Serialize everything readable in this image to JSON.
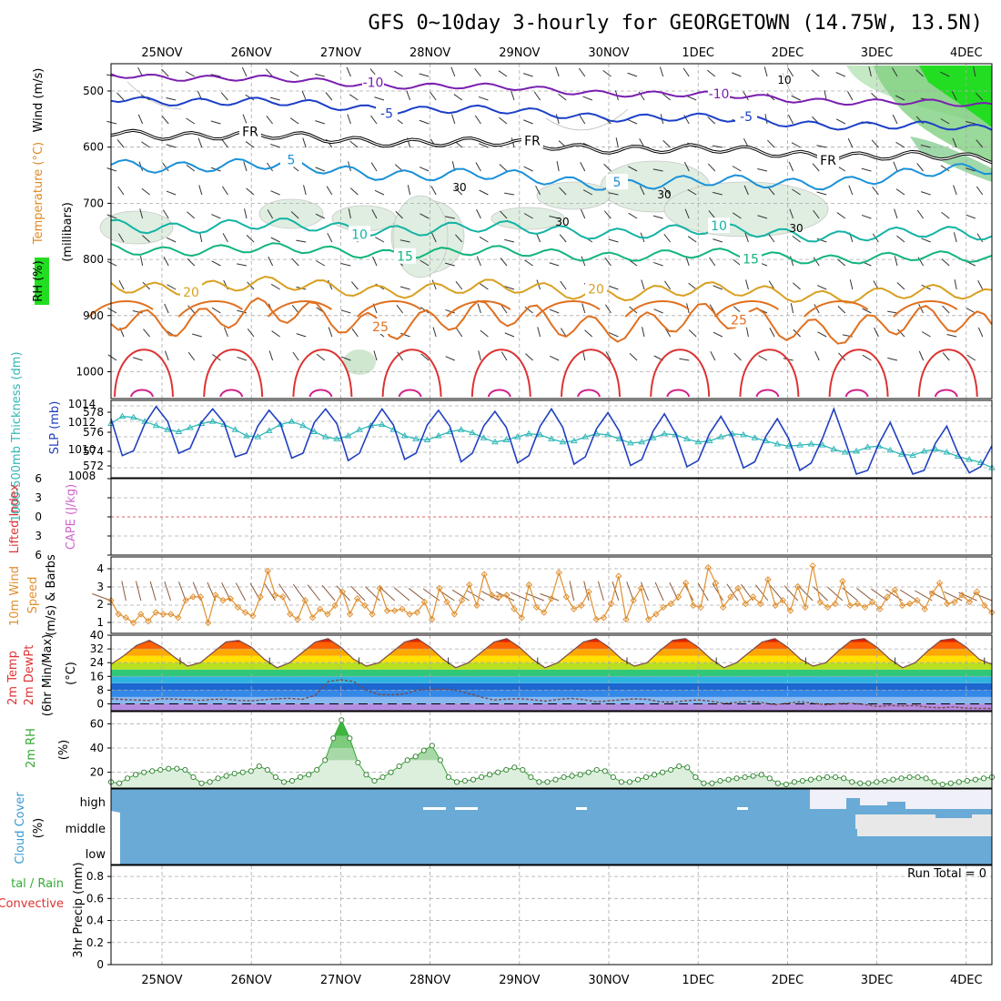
{
  "title": "GFS 0~10day 3-hourly for GEORGETOWN (14.75W, 13.5N)",
  "dates": [
    "25NOV",
    "26NOV",
    "27NOV",
    "28NOV",
    "29NOV",
    "30NOV",
    "1DEC",
    "2DEC",
    "3DEC",
    "4DEC"
  ],
  "run_total": "Run Total = 0",
  "colors": {
    "axis": "#000000",
    "grid": "#aaaaaa",
    "rh_green": "#22dd22",
    "temp_orange": "#e08a20",
    "temp_red": "#dd3333",
    "slp": "#2040c0",
    "thick": "#30b8b8",
    "wind": "#e09030",
    "barb": "#8b5a3c",
    "rh2m": "#33aa33",
    "cloud": "#6aaad6"
  },
  "panels": {
    "upper": {
      "labels": {
        "wind": "Wind (m/s)",
        "temp": "Temperature (°C)",
        "pressure": "(millibars)",
        "rh": "RH (%)"
      },
      "yticks": [
        "500",
        "600",
        "700",
        "800",
        "900",
        "1000"
      ],
      "contours": [
        {
          "label": "-10",
          "color": "#7a1fb0",
          "level": -10
        },
        {
          "label": "-5",
          "color": "#1c3fc8",
          "level": -5
        },
        {
          "label": "FR",
          "color": "#000000",
          "level": 0
        },
        {
          "label": "5",
          "color": "#1a90d8",
          "level": 5
        },
        {
          "label": "10",
          "color": "#13b3a4",
          "level": 10
        },
        {
          "label": "15",
          "color": "#12b57a",
          "level": 15
        },
        {
          "label": "20",
          "color": "#d8a020",
          "level": 20
        },
        {
          "label": "25",
          "color": "#e07020",
          "level": 25
        }
      ],
      "rh_labels": [
        "10",
        "30",
        "30",
        "30",
        "30"
      ]
    },
    "slp": {
      "labels": {
        "thick": "1000-500mb Thickness (dm)",
        "slp": "SLP (mb)"
      },
      "yticks_left": [
        "578",
        "576",
        "574",
        "572"
      ],
      "yticks_right": [
        "1014",
        "1012",
        "1010",
        "1008"
      ]
    },
    "cape": {
      "labels": {
        "li": "Lifted Index",
        "cape": "CAPE (J/kg)"
      },
      "yticks": [
        "6",
        "3",
        "0",
        "3",
        "6"
      ]
    },
    "wind10": {
      "labels": {
        "main": "10m Wind",
        "speed": "Speed",
        "barbs": "(m/s) & Barbs"
      },
      "yticks": [
        "4",
        "3",
        "2",
        "1"
      ]
    },
    "temp2m": {
      "labels": {
        "temp": "2m Temp",
        "dew": "2m DewPt",
        "minmax": "(6hr Min/Max)",
        "unit": "(°C)"
      },
      "yticks": [
        "40",
        "32",
        "24",
        "16",
        "8",
        "0"
      ]
    },
    "rh2m": {
      "labels": {
        "main": "2m RH",
        "unit": "(%)"
      },
      "yticks": [
        "60",
        "40",
        "20"
      ]
    },
    "cloud": {
      "labels": {
        "main": "Cloud Cover",
        "unit": "(%)",
        "high": "high",
        "middle": "middle",
        "low": "low"
      }
    },
    "precip": {
      "labels": {
        "total": "tal / Rain",
        "conv": "Convective",
        "main": "3hr Precip (mm)"
      },
      "yticks": [
        "0.8",
        "0.6",
        "0.4",
        "0.2",
        "0"
      ]
    }
  },
  "chart_data": [
    {
      "type": "line",
      "name": "upper-air cross section",
      "ylabel": "(millibars)",
      "ylim": [
        1000,
        450
      ],
      "contour_levels": [
        -10,
        -5,
        0,
        5,
        10,
        15,
        20,
        25
      ],
      "contour_pressure_mb": [
        470,
        512,
        573,
        630,
        738,
        780,
        845,
        900
      ]
    },
    {
      "type": "line",
      "name": "sea level pressure and thickness",
      "ylabel_left": "1000-500mb Thickness (dm)",
      "ylabel_right": "SLP (mb)",
      "ylim_left": [
        571,
        579
      ],
      "ylim_right": [
        1008,
        1014
      ],
      "series": [
        {
          "name": "SLP (mb)",
          "values": [
            1012.8,
            1009.8,
            1010.2,
            1012.4,
            1013.8,
            1012.6,
            1010,
            1010.4,
            1012.5,
            1013.6,
            1012.5,
            1009.7,
            1010,
            1012.2,
            1013.5,
            1012.4,
            1009.6,
            1010,
            1012.5,
            1013.6,
            1012.4,
            1009.4,
            1010,
            1012.2,
            1013.6,
            1012.3,
            1009.5,
            1010,
            1012.3,
            1013.5,
            1012.2,
            1009.3,
            1010,
            1012.2,
            1013.4,
            1012.1,
            1009.2,
            1009.8,
            1012.2,
            1013.6,
            1012.1,
            1009.1,
            1009.7,
            1012,
            1013.3,
            1011.8,
            1009,
            1009.5,
            1011.8,
            1013.2,
            1011.6,
            1008.9,
            1009.4,
            1011.6,
            1013,
            1011.4,
            1008.8,
            1009.3,
            1011.4,
            1012.8,
            1011.2,
            1008.6,
            1009.2,
            1011.2,
            1013.6,
            1011,
            1008.3,
            1008.6,
            1010.8,
            1012.5,
            1010.4,
            1008.3,
            1008.6,
            1010.8,
            1012.2,
            1010,
            1008.4,
            1008.9,
            1010.6
          ]
        },
        {
          "name": "1000-500mb Thickness (dm)",
          "values": [
            576.6,
            577.3,
            577.2,
            576.8,
            576.4,
            576,
            575.8,
            576.2,
            576.6,
            576.8,
            576.5,
            576,
            575.4,
            575.3,
            575.9,
            576.5,
            576.8,
            576.4,
            575.8,
            575.3,
            575.1,
            575.4,
            576,
            576.4,
            576.5,
            576,
            575.4,
            575.1,
            575,
            575.4,
            575.8,
            576,
            575.7,
            575.2,
            574.8,
            575,
            575.3,
            575.6,
            575.5,
            575.1,
            574.8,
            574.9,
            575.3,
            575.6,
            575.5,
            575.1,
            574.7,
            574.8,
            575.2,
            575.6,
            575.5,
            575.1,
            574.8,
            574.9,
            575.3,
            575.6,
            575.5,
            575.2,
            574.9,
            574.6,
            574.4,
            574.5,
            574.6,
            574.5,
            574.1,
            573.8,
            573.9,
            574.3,
            574.4,
            574,
            573.6,
            573.5,
            573.9,
            574.1,
            573.8,
            573.4,
            573.1,
            572.8,
            572.3
          ]
        }
      ]
    },
    {
      "type": "line",
      "name": "lifted index",
      "ylabel": "CAPE (J/kg)",
      "ylim": [
        -6,
        6
      ],
      "values": []
    },
    {
      "type": "line",
      "name": "10m wind speed",
      "ylabel": "(m/s)",
      "ylim": [
        0.6,
        4.6
      ],
      "series": [
        {
          "name": "Speed",
          "values": [
            2.3,
            1.5,
            1.3,
            1,
            1.5,
            1.1,
            1.6,
            1.5,
            1.5,
            1.3,
            2.3,
            2.5,
            2.5,
            1,
            2.6,
            2.3,
            2.4,
            1.9,
            1.6,
            1.4,
            2.5,
            4,
            2.6,
            2.5,
            1.5,
            1.2,
            2.3,
            1.3,
            1.8,
            1.5,
            2,
            2.8,
            1.5,
            2.4,
            2,
            1.5,
            3,
            1.7,
            1.7,
            1.8,
            1.5,
            1.6,
            2.2,
            1.2,
            3,
            2.2,
            1.5,
            2.3,
            3.2,
            2,
            3.8,
            2.6,
            2.5,
            2.6,
            1.8,
            1.3,
            3.2,
            1.9,
            1.6,
            2.4,
            3.9,
            2.5,
            1.8,
            2,
            2.8,
            1.2,
            1.3,
            2.1,
            3.7,
            1.2,
            2.3,
            3,
            1.2,
            1.5,
            1.9,
            2.1,
            2.5,
            3.3,
            2,
            1.9,
            4.2,
            3.3,
            1.9,
            2.5,
            3,
            2.1,
            2.5,
            2.1,
            3.5,
            2,
            2.3,
            1.7,
            3.1,
            1.9,
            4.3,
            2.2,
            1.9,
            2.1,
            3.4,
            2,
            2.1,
            1.9,
            2.2,
            1.8,
            2.5,
            2.9,
            2,
            2.1,
            2.3,
            1.8,
            2.7,
            3.3,
            2.1,
            2.2,
            2.6,
            2.2,
            2.8,
            2,
            1.6
          ]
        }
      ]
    },
    {
      "type": "line",
      "name": "2m temperature and dewpoint",
      "ylabel": "(°C)",
      "ylim": [
        -4,
        40
      ],
      "series": [
        {
          "name": "2m Temp",
          "values": [
            23,
            28,
            34,
            37,
            33,
            27,
            22,
            24,
            30,
            36,
            37,
            33,
            26,
            21,
            24,
            30,
            36,
            38,
            33,
            26,
            22,
            24,
            30,
            36,
            38,
            33,
            26,
            21,
            24,
            30,
            36,
            38,
            33,
            26,
            21,
            24,
            30,
            36,
            38,
            33,
            26,
            22,
            24,
            31,
            37,
            38,
            33,
            26,
            21,
            24,
            30,
            36,
            38,
            33,
            26,
            22,
            24,
            31,
            37,
            38,
            33,
            26,
            21,
            24,
            31,
            37,
            38,
            33,
            26,
            23
          ]
        },
        {
          "name": "2m DewPt",
          "values": [
            3,
            2.5,
            2.2,
            2,
            3,
            2.8,
            2.4,
            2,
            2.6,
            2.8,
            2,
            1.8,
            2.4,
            3,
            3.2,
            2.6,
            5,
            13,
            14,
            13,
            8,
            5.4,
            5.2,
            5.8,
            8,
            8.4,
            8.5,
            8,
            6,
            4,
            2.2,
            2.8,
            3,
            2.4,
            1.6,
            2.5,
            3.2,
            2.5,
            1.2,
            1.8,
            2.4,
            2.9,
            2.6,
            1.2,
            1,
            1.8,
            2.3,
            1.5,
            0.3,
            0.9,
            1.5,
            0.7,
            -0.5,
            0.4,
            1.2,
            0.4,
            -0.6,
            0.2,
            0.4,
            -0.4,
            -1.5,
            -1,
            -1.2,
            -1,
            -2,
            -2.3,
            -1.8,
            -2.5,
            -2.6,
            -2.7
          ]
        }
      ]
    },
    {
      "type": "line",
      "name": "2m relative humidity",
      "ylabel": "(%)",
      "ylim": [
        7,
        70
      ],
      "series": [
        {
          "name": "2m RH",
          "values": [
            12,
            11,
            15,
            18,
            20,
            21,
            22,
            23,
            23,
            22,
            16,
            11,
            12,
            15,
            17,
            19,
            20,
            21,
            25,
            22,
            16,
            12,
            13,
            16,
            18,
            22,
            30,
            48,
            63,
            48,
            28,
            18,
            13,
            16,
            20,
            25,
            30,
            33,
            38,
            42,
            30,
            16,
            12,
            13,
            14,
            16,
            18,
            20,
            22,
            24,
            22,
            16,
            12,
            12,
            14,
            16,
            17,
            18,
            20,
            22,
            21,
            16,
            12,
            12,
            14,
            16,
            18,
            20,
            22,
            25,
            24,
            16,
            11,
            11,
            13,
            14,
            15,
            16,
            17,
            18,
            15,
            11,
            10,
            12,
            13,
            14,
            15,
            16,
            16,
            15,
            12,
            11,
            11,
            12,
            13,
            14,
            15,
            16,
            16,
            15,
            12,
            10,
            11,
            12,
            13,
            14,
            15,
            16
          ]
        }
      ]
    },
    {
      "type": "area",
      "name": "cloud cover",
      "ylabel": "(%)",
      "categories": [
        "low",
        "middle",
        "high"
      ]
    },
    {
      "type": "bar",
      "name": "3hr precipitation",
      "ylabel": "3hr Precip (mm)",
      "ylim": [
        0,
        0.9
      ],
      "values": []
    }
  ]
}
